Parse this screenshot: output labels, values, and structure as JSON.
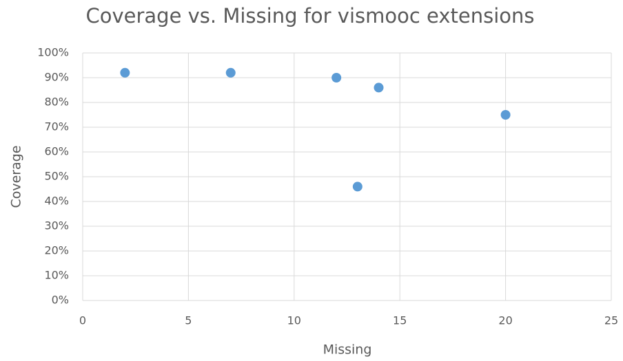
{
  "chart_data": {
    "type": "scatter",
    "title": "Coverage vs. Missing for vismooc extensions",
    "x_label": "Missing",
    "y_label": "Coverage",
    "x": [
      2,
      7,
      12,
      14,
      13,
      20
    ],
    "values": [
      92,
      92,
      90,
      86,
      46,
      75
    ],
    "color": "#5b9bd5",
    "xlim": [
      0,
      25
    ],
    "xticks": [
      0,
      5,
      10,
      15,
      20,
      25
    ],
    "ylim": [
      0,
      100
    ],
    "yticks": [
      {
        "value": 0,
        "label": "0%"
      },
      {
        "value": 10,
        "label": "10%"
      },
      {
        "value": 20,
        "label": "20%"
      },
      {
        "value": 30,
        "label": "30%"
      },
      {
        "value": 40,
        "label": "40%"
      },
      {
        "value": 50,
        "label": "50%"
      },
      {
        "value": 60,
        "label": "60%"
      },
      {
        "value": 70,
        "label": "70%"
      },
      {
        "value": 80,
        "label": "80%"
      },
      {
        "value": 90,
        "label": "90%"
      },
      {
        "value": 100,
        "label": "100%"
      }
    ],
    "grid": true
  }
}
